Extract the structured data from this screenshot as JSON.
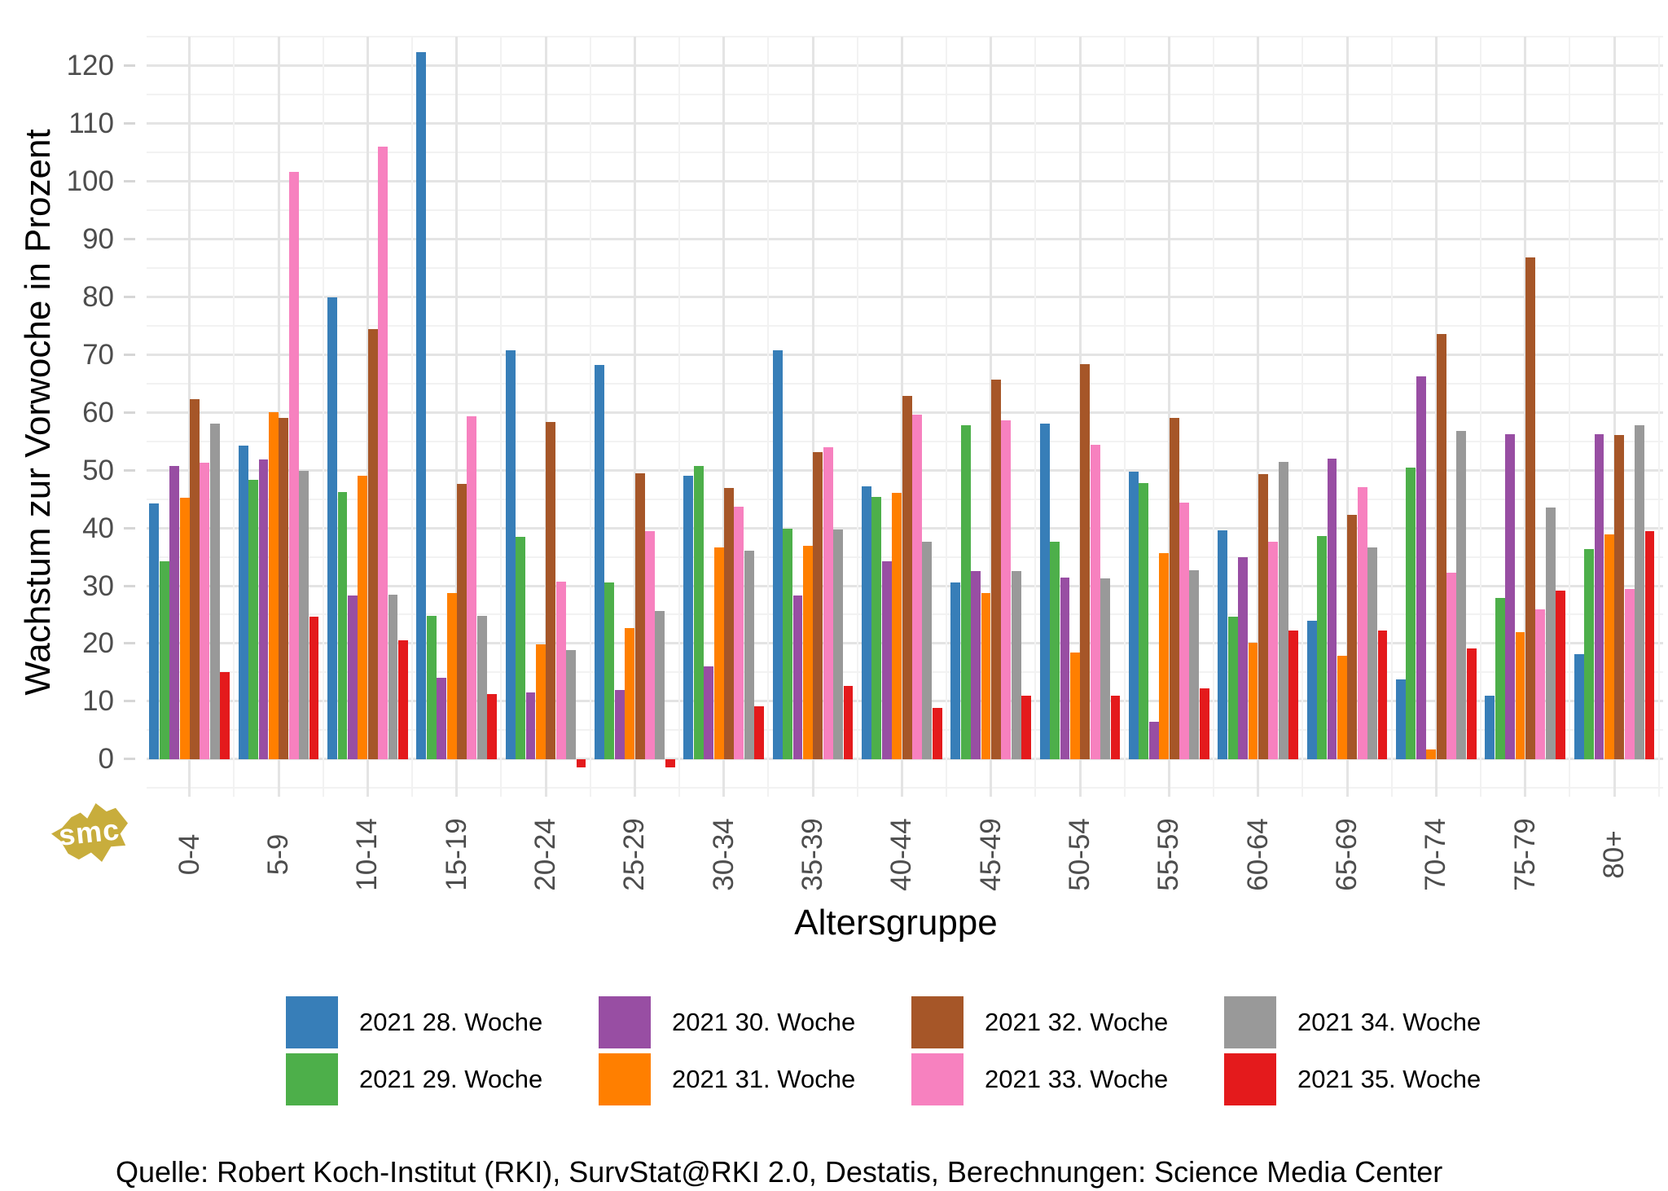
{
  "chart_data": {
    "type": "bar",
    "title": "",
    "xlabel": "Altersgruppe",
    "ylabel": "Wachstum zur Vorwoche in Prozent",
    "ylim": [
      -6.5,
      125
    ],
    "yticks": [
      0,
      10,
      20,
      30,
      40,
      50,
      60,
      70,
      80,
      90,
      100,
      110,
      120
    ],
    "minor_grid_step": 5,
    "grid": "light gray major and minor lines on white",
    "legend_position": "bottom, 4 columns x 2 rows",
    "categories": [
      "0-4",
      "5-9",
      "10-14",
      "15-19",
      "20-24",
      "25-29",
      "30-34",
      "35-39",
      "40-44",
      "45-49",
      "50-54",
      "55-59",
      "60-64",
      "65-69",
      "70-74",
      "75-79",
      "80+"
    ],
    "series": [
      {
        "name": "2021 28. Woche",
        "color": "#377EB8",
        "values": [
          44.3,
          54.2,
          80.0,
          122.4,
          70.7,
          68.2,
          49.0,
          70.7,
          47.2,
          30.6,
          58.0,
          49.7,
          39.6,
          24.0,
          13.8,
          11.0,
          18.2
        ]
      },
      {
        "name": "2021 29. Woche",
        "color": "#4DAF4A",
        "values": [
          34.2,
          48.3,
          46.2,
          24.8,
          38.5,
          30.6,
          50.7,
          39.9,
          45.4,
          57.8,
          37.6,
          47.8,
          24.7,
          38.6,
          50.5,
          27.9,
          36.4
        ]
      },
      {
        "name": "2021 30. Woche",
        "color": "#984EA3",
        "values": [
          50.7,
          51.9,
          28.3,
          14.0,
          11.5,
          11.9,
          16.0,
          28.3,
          34.3,
          32.6,
          31.4,
          6.5,
          34.9,
          52.0,
          66.3,
          56.3,
          56.2
        ]
      },
      {
        "name": "2021 31. Woche",
        "color": "#FF7F00",
        "values": [
          45.3,
          60.0,
          49.1,
          28.7,
          19.9,
          22.7,
          36.7,
          36.9,
          46.1,
          28.8,
          18.5,
          35.6,
          20.1,
          17.9,
          1.6,
          22.0,
          38.9
        ]
      },
      {
        "name": "2021 32. Woche",
        "color": "#A65628",
        "values": [
          62.3,
          59.1,
          74.5,
          47.7,
          58.4,
          49.5,
          46.9,
          53.1,
          62.8,
          65.7,
          68.4,
          59.0,
          49.3,
          42.3,
          73.6,
          86.8,
          56.1
        ]
      },
      {
        "name": "2021 33. Woche",
        "color": "#F781BF",
        "values": [
          51.3,
          101.6,
          106.0,
          59.3,
          30.7,
          39.5,
          43.7,
          54.0,
          59.6,
          58.7,
          54.4,
          44.4,
          37.6,
          47.1,
          32.2,
          25.9,
          29.4
        ]
      },
      {
        "name": "2021 34. Woche",
        "color": "#999999",
        "values": [
          58.1,
          49.9,
          28.5,
          24.8,
          18.8,
          25.7,
          36.0,
          39.7,
          37.6,
          32.6,
          31.3,
          32.7,
          51.4,
          36.7,
          56.8,
          43.6,
          57.8
        ]
      },
      {
        "name": "2021 35. Woche",
        "color": "#E41A1C",
        "values": [
          15.1,
          24.7,
          20.5,
          11.2,
          -1.4,
          -1.4,
          9.1,
          12.7,
          8.9,
          11.0,
          11.0,
          12.3,
          22.2,
          22.2,
          19.2,
          29.1,
          39.5
        ]
      }
    ]
  },
  "footer": {
    "source": "Quelle: Robert Koch-Institut (RKI), SurvStat@RKI 2.0, Destatis, Berechnungen: Science Media Center"
  },
  "logo": {
    "text": "smc",
    "color": "#C8AD3C"
  }
}
